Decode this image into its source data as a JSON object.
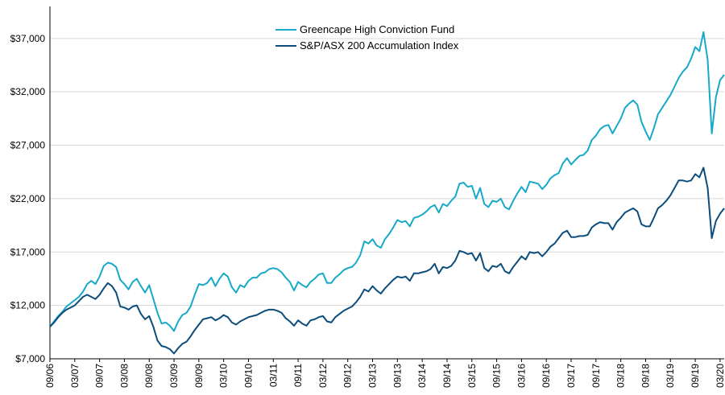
{
  "chart_data": {
    "type": "line",
    "title": "",
    "xlabel": "",
    "ylabel": "",
    "ylim": [
      7000,
      40000
    ],
    "y_ticks": [
      "$7,000",
      "$12,000",
      "$17,000",
      "$22,000",
      "$27,000",
      "$32,000",
      "$37,000"
    ],
    "x_ticks": [
      "09/06",
      "03/07",
      "09/07",
      "03/08",
      "09/08",
      "03/09",
      "09/09",
      "03/10",
      "09/10",
      "03/11",
      "09/11",
      "03/12",
      "09/12",
      "03/13",
      "09/13",
      "03/14",
      "09/14",
      "03/15",
      "09/15",
      "03/16",
      "09/16",
      "03/17",
      "09/17",
      "03/18",
      "09/18",
      "03/19",
      "09/19",
      "03/20"
    ],
    "grid": "horizontal",
    "legend_position": "top-center",
    "series": [
      {
        "name": "Greencape High Conviction Fund",
        "color": "#17a9c9",
        "values": [
          10000,
          10500,
          11000,
          11400,
          11900,
          12200,
          12500,
          12800,
          13300,
          14000,
          14300,
          14000,
          14700,
          15700,
          16000,
          15900,
          15600,
          14400,
          14000,
          13500,
          14200,
          14500,
          13800,
          13200,
          13900,
          12600,
          11300,
          10300,
          10400,
          10100,
          9600,
          10500,
          11100,
          11300,
          11900,
          13000,
          14000,
          13900,
          14100,
          14600,
          13800,
          14500,
          15000,
          14700,
          13700,
          13200,
          13900,
          13700,
          14300,
          14600,
          14600,
          15000,
          15100,
          15400,
          15500,
          15400,
          15100,
          14600,
          14200,
          13400,
          14200,
          13900,
          13700,
          14200,
          14500,
          14900,
          15000,
          14100,
          14100,
          14600,
          14900,
          15300,
          15500,
          15600,
          16000,
          16700,
          18000,
          17800,
          18200,
          17600,
          17400,
          18200,
          18700,
          19300,
          20000,
          19800,
          19900,
          19400,
          20200,
          20300,
          20500,
          20800,
          21200,
          21400,
          20700,
          21500,
          21300,
          21800,
          22200,
          23400,
          23500,
          23100,
          23200,
          22000,
          23000,
          21500,
          21200,
          21800,
          21700,
          22000,
          21200,
          21000,
          21800,
          22500,
          23100,
          22600,
          23600,
          23500,
          23400,
          22900,
          23300,
          23900,
          24200,
          24400,
          25300,
          25800,
          25200,
          25600,
          26000,
          26100,
          26500,
          27500,
          27900,
          28500,
          28800,
          28900,
          28100,
          28800,
          29500,
          30500,
          30900,
          31200,
          30800,
          29200,
          28300,
          27500,
          28600,
          29900,
          30500,
          31100,
          31700,
          32500,
          33300,
          33900,
          34300,
          35100,
          36200,
          35800,
          37600,
          35000,
          28100,
          31500,
          33100,
          33600
        ]
      },
      {
        "name": "S&P/ASX 200 Accumulation Index",
        "color": "#0d4d7c",
        "values": [
          10000,
          10400,
          10900,
          11300,
          11600,
          11800,
          12000,
          12400,
          12800,
          13000,
          12800,
          12600,
          13000,
          13600,
          14100,
          13800,
          13200,
          11900,
          11800,
          11600,
          11900,
          12000,
          11200,
          10700,
          11000,
          10000,
          8700,
          8200,
          8100,
          7900,
          7500,
          8000,
          8400,
          8600,
          9100,
          9700,
          10200,
          10700,
          10800,
          10900,
          10600,
          10800,
          11100,
          10900,
          10400,
          10200,
          10500,
          10700,
          10900,
          11000,
          11100,
          11300,
          11500,
          11600,
          11600,
          11500,
          11300,
          10800,
          10500,
          10100,
          10600,
          10300,
          10100,
          10600,
          10700,
          10900,
          11000,
          10500,
          10400,
          10900,
          11200,
          11500,
          11700,
          11900,
          12300,
          12800,
          13500,
          13300,
          13800,
          13400,
          13100,
          13600,
          14000,
          14400,
          14700,
          14600,
          14700,
          14300,
          15000,
          15000,
          15100,
          15200,
          15400,
          15900,
          15000,
          15600,
          15500,
          15700,
          16200,
          17100,
          17000,
          16800,
          16900,
          16200,
          16900,
          15500,
          15200,
          15700,
          15600,
          15900,
          15200,
          15000,
          15600,
          16100,
          16600,
          16300,
          17000,
          16900,
          17000,
          16600,
          17000,
          17500,
          17800,
          18300,
          18800,
          19000,
          18400,
          18400,
          18500,
          18500,
          18600,
          19300,
          19600,
          19800,
          19700,
          19700,
          19100,
          19800,
          20200,
          20700,
          20900,
          21100,
          20800,
          19600,
          19400,
          19400,
          20200,
          21100,
          21400,
          21800,
          22300,
          23000,
          23700,
          23700,
          23600,
          23700,
          24300,
          24000,
          24900,
          23000,
          18300,
          19900,
          20600,
          21100
        ]
      }
    ]
  }
}
